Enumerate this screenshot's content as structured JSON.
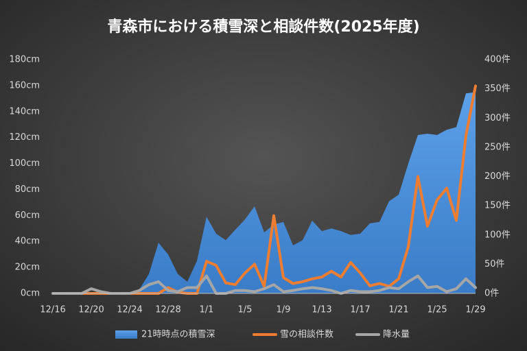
{
  "chart_data": {
    "type": "combo",
    "title": "青森市における積雪深と相談件数(2025年度)",
    "categories": [
      "12/16",
      null,
      null,
      null,
      "12/20",
      null,
      null,
      null,
      "12/24",
      null,
      null,
      null,
      "12/28",
      null,
      null,
      null,
      "1/1",
      null,
      null,
      null,
      "1/5",
      null,
      null,
      null,
      "1/9",
      null,
      null,
      null,
      "1/13",
      null,
      null,
      null,
      "1/17",
      null,
      null,
      null,
      "1/21",
      null,
      null,
      null,
      "1/25",
      null,
      null,
      null,
      "1/29"
    ],
    "series": [
      {
        "name": "21時時点の積雪深",
        "type": "area",
        "color": "#4a90d9",
        "axis": "y",
        "values": [
          0,
          0,
          0,
          0,
          0,
          0,
          0,
          0,
          0,
          3,
          15,
          39,
          30,
          15,
          9,
          25,
          59,
          46,
          41,
          49,
          57,
          67,
          47,
          53,
          55,
          37,
          41,
          56,
          48,
          50,
          48,
          45,
          46,
          54,
          55,
          71,
          76,
          100,
          122,
          123,
          122,
          126,
          128,
          154,
          155
        ]
      },
      {
        "name": "雪の相談件数",
        "type": "line",
        "color": "#ed7d31",
        "axis": "y2",
        "values": [
          0,
          0,
          0,
          0,
          0,
          0,
          0,
          0,
          0,
          0,
          0,
          0,
          10,
          2,
          0,
          0,
          55,
          48,
          18,
          15,
          35,
          50,
          12,
          133,
          27,
          17,
          20,
          25,
          28,
          38,
          28,
          53,
          35,
          13,
          17,
          12,
          25,
          80,
          200,
          115,
          160,
          180,
          125,
          270,
          355
        ]
      },
      {
        "name": "降水量",
        "type": "line",
        "color": "#a6a6a6",
        "axis": "y2",
        "values": [
          0,
          0,
          0,
          0,
          8,
          3,
          0,
          0,
          0,
          5,
          15,
          20,
          5,
          3,
          10,
          10,
          30,
          0,
          0,
          5,
          5,
          3,
          8,
          15,
          3,
          5,
          8,
          10,
          8,
          5,
          0,
          5,
          3,
          3,
          5,
          10,
          8,
          20,
          30,
          10,
          12,
          3,
          8,
          25,
          10
        ]
      }
    ],
    "ylim": [
      0,
      180
    ],
    "yticks": [
      {
        "value": 0,
        "label": "0cm"
      },
      {
        "value": 20,
        "label": "20cm"
      },
      {
        "value": 40,
        "label": "40cm"
      },
      {
        "value": 60,
        "label": "60cm"
      },
      {
        "value": 80,
        "label": "80cm"
      },
      {
        "value": 100,
        "label": "100cm"
      },
      {
        "value": 120,
        "label": "120cm"
      },
      {
        "value": 140,
        "label": "140cm"
      },
      {
        "value": 160,
        "label": "160cm"
      },
      {
        "value": 180,
        "label": "180cm"
      }
    ],
    "y2lim": [
      0,
      400
    ],
    "y2ticks": [
      {
        "value": 0,
        "label": "0件"
      },
      {
        "value": 50,
        "label": "50件"
      },
      {
        "value": 100,
        "label": "100件"
      },
      {
        "value": 150,
        "label": "150件"
      },
      {
        "value": 200,
        "label": "200件"
      },
      {
        "value": 250,
        "label": "250件"
      },
      {
        "value": 300,
        "label": "300件"
      },
      {
        "value": 350,
        "label": "350件"
      },
      {
        "value": 400,
        "label": "400件"
      }
    ],
    "legend": "bottom"
  }
}
